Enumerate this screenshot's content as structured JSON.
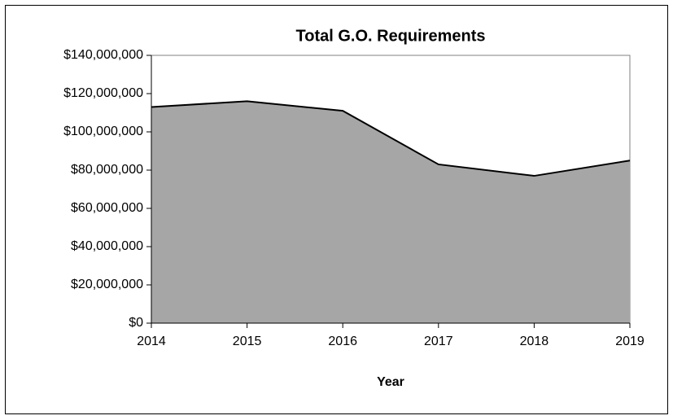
{
  "chart_data": {
    "type": "area",
    "title": "Total G.O. Requirements",
    "x_label": "Year",
    "x": [
      2014,
      2015,
      2016,
      2017,
      2018,
      2019
    ],
    "values": [
      113000000,
      116000000,
      111000000,
      83000000,
      77000000,
      85000000
    ],
    "color": "#a6a6a6",
    "line_color": "#000000",
    "xlim": [
      2014,
      2019
    ],
    "xticks": [
      2014,
      2015,
      2016,
      2017,
      2018,
      2019
    ],
    "ylim": [
      0,
      140000000
    ],
    "yticks": [
      {
        "value": 0,
        "label": "$0"
      },
      {
        "value": 20000000,
        "label": "$20,000,000"
      },
      {
        "value": 40000000,
        "label": "$40,000,000"
      },
      {
        "value": 60000000,
        "label": "$60,000,000"
      },
      {
        "value": 80000000,
        "label": "$80,000,000"
      },
      {
        "value": 100000000,
        "label": "$100,000,000"
      },
      {
        "value": 120000000,
        "label": "$120,000,000"
      },
      {
        "value": 140000000,
        "label": "$140,000,000"
      }
    ],
    "grid": false
  }
}
